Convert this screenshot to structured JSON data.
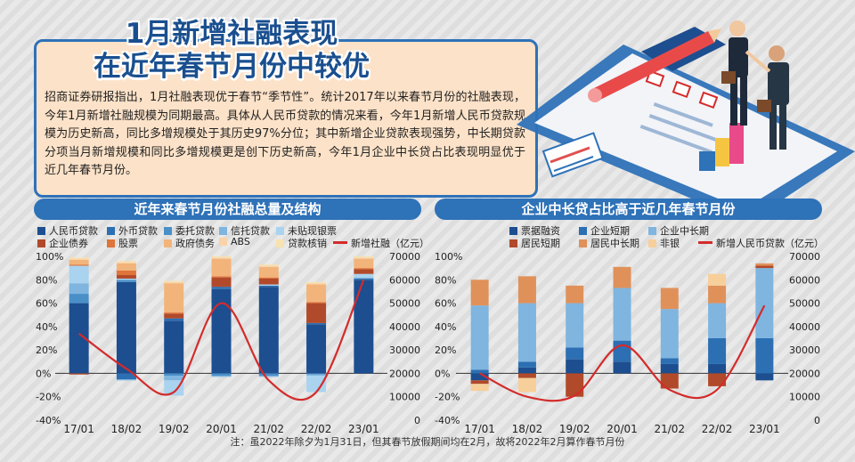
{
  "header": {
    "title_line1": "1月新增社融表现",
    "title_line2": "在近年春节月份中较优",
    "intro": "招商证券研报指出，1月社融表现优于春节“季节性”。统计2017年以来春节月份的社融表现，今年1月新增社融规模为同期最高。具体从人民币贷款的情况来看，今年1月新增人民币贷款规模为历史新高，同比多增规模处于其历史97%分位；其中新增企业贷款表现强势，中长期贷款分项当月新增规模和同比多增规模更是创下历史新高，今年1月企业中长贷占比表现明显优于近几年春节月份。"
  },
  "note": "注：虽2022年除夕为1月31日，但其春节放假期间均在2月，故将2022年2月算作春节月份",
  "chart_data": [
    {
      "type": "bar",
      "stacked": true,
      "title": "近年来春节月份社融总量及结构",
      "categories": [
        "17/01",
        "18/02",
        "19/02",
        "20/01",
        "21/02",
        "22/02",
        "23/01"
      ],
      "left_axis": {
        "ticks": [
          "100%",
          "80%",
          "60%",
          "40%",
          "20%",
          "0%",
          "-20%",
          "-40%"
        ],
        "ylim": [
          -40,
          100
        ]
      },
      "right_axis": {
        "ticks": [
          "70000",
          "60000",
          "50000",
          "40000",
          "30000",
          "20000",
          "10000",
          "0"
        ],
        "ylim": [
          0,
          70000
        ]
      },
      "series": [
        {
          "name": "人民币贷款",
          "color": "#1d4e8f",
          "values": [
            60,
            78,
            45,
            72,
            74,
            42,
            80
          ]
        },
        {
          "name": "外币贷款",
          "color": "#2c6fb3",
          "values": [
            0,
            -5,
            2,
            2,
            1,
            1,
            1
          ]
        },
        {
          "name": "委托贷款",
          "color": "#4a8fc8",
          "values": [
            8,
            2,
            -2,
            -2,
            -2,
            -1,
            0
          ]
        },
        {
          "name": "信托贷款",
          "color": "#7fb5df",
          "values": [
            9,
            -1,
            -4,
            -1,
            -1,
            -1,
            1
          ]
        },
        {
          "name": "未贴现银票",
          "color": "#a9d3ef",
          "values": [
            15,
            1,
            -13,
            0,
            1,
            -14,
            3
          ]
        },
        {
          "name": "企业债券",
          "color": "#b14a2a",
          "values": [
            -1,
            3,
            4,
            8,
            5,
            17,
            4
          ]
        },
        {
          "name": "股票",
          "color": "#e0743a",
          "values": [
            1,
            4,
            1,
            1,
            1,
            1,
            1
          ]
        },
        {
          "name": "政府债务",
          "color": "#f2b47a",
          "values": [
            4,
            6,
            25,
            15,
            9,
            15,
            8
          ]
        },
        {
          "name": "ABS",
          "color": "#fad3a7",
          "values": [
            1,
            1,
            1,
            1,
            1,
            1,
            1
          ]
        },
        {
          "name": "贷款核销",
          "color": "#f7e2b0",
          "values": [
            1,
            1,
            1,
            1,
            1,
            1,
            1
          ]
        }
      ],
      "line": {
        "name": "新增社融（亿元）",
        "color": "#d42b2b",
        "values": [
          37000,
          22000,
          12000,
          50000,
          17000,
          12000,
          60000
        ]
      }
    },
    {
      "type": "bar",
      "stacked": true,
      "title": "企业中长贷占比高于近几年春节月份",
      "categories": [
        "17/01",
        "18/02",
        "19/02",
        "20/01",
        "21/02",
        "22/02",
        "23/01"
      ],
      "left_axis": {
        "ticks": [
          "100%",
          "80%",
          "60%",
          "40%",
          "20%",
          "0%",
          "-20%",
          "-40%"
        ],
        "ylim": [
          -40,
          100
        ]
      },
      "right_axis": {
        "ticks": [
          "70000",
          "60000",
          "50000",
          "40000",
          "30000",
          "20000",
          "10000",
          "0"
        ],
        "ylim": [
          0,
          70000
        ]
      },
      "series": [
        {
          "name": "票据融资",
          "color": "#1d4e8f",
          "values": [
            -6,
            5,
            12,
            10,
            8,
            8,
            -6
          ]
        },
        {
          "name": "企业短期",
          "color": "#2c6fb3",
          "values": [
            3,
            5,
            10,
            18,
            5,
            22,
            30
          ]
        },
        {
          "name": "企业中长期",
          "color": "#7fb5df",
          "values": [
            55,
            50,
            38,
            45,
            42,
            30,
            60
          ]
        },
        {
          "name": "居民短期",
          "color": "#b14a2a",
          "values": [
            -3,
            -4,
            -20,
            0,
            -13,
            -11,
            2
          ]
        },
        {
          "name": "居民中长期",
          "color": "#e0915a",
          "values": [
            22,
            23,
            15,
            18,
            18,
            15,
            2
          ]
        },
        {
          "name": "非银",
          "color": "#f7cf9a",
          "values": [
            -6,
            -12,
            0,
            0,
            0,
            10,
            0
          ]
        }
      ],
      "line": {
        "name": "新增人民币贷款（亿元）",
        "color": "#d42b2b",
        "values": [
          20000,
          10000,
          10500,
          32000,
          13000,
          13000,
          49000
        ]
      }
    }
  ]
}
